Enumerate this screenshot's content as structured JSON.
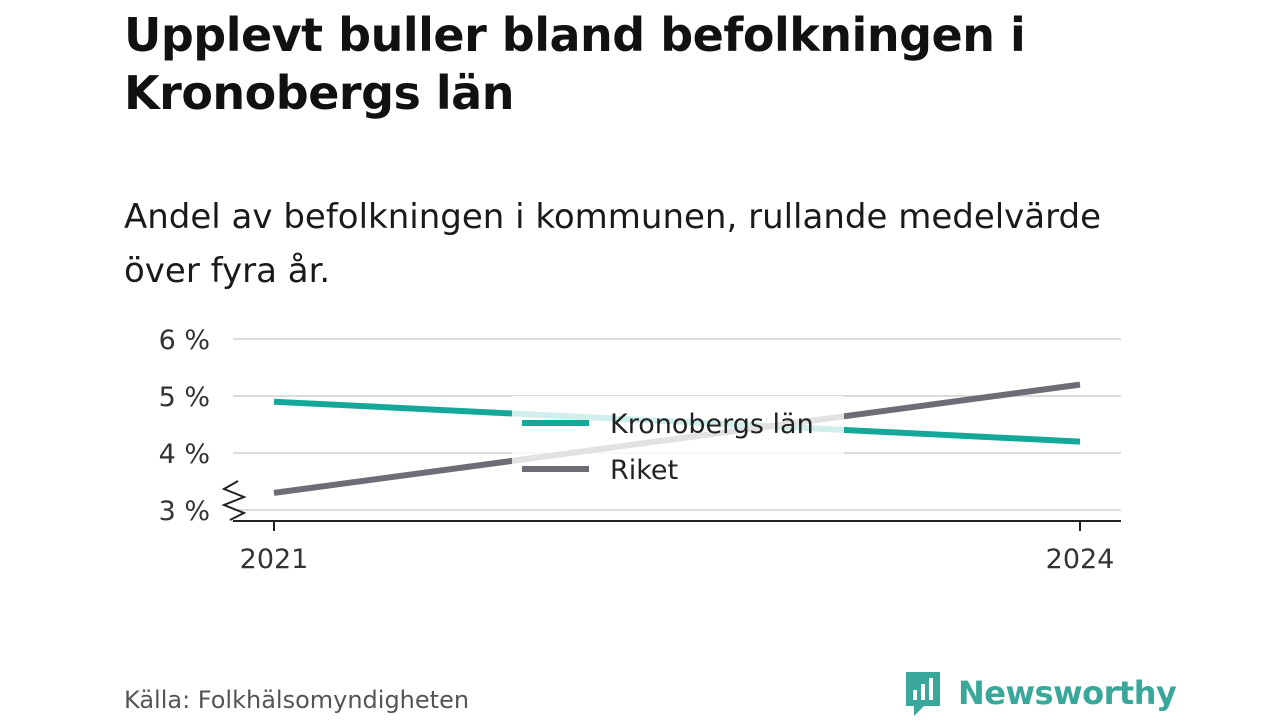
{
  "title": "Upplevt buller bland befolkningen i Kronobergs län",
  "subtitle": "Andel av befolkningen i kommunen, rullande medelvärde över fyra år.",
  "source": "Källa: Folkhälsomyndigheten",
  "brand": {
    "name": "Newsworthy",
    "icon": "bar-chart-speech-icon",
    "color": "#39a79a"
  },
  "chart_data": {
    "type": "line",
    "x": [
      2021,
      2024
    ],
    "x_tick_labels": [
      "2021",
      "2024"
    ],
    "y_ticks": [
      3,
      4,
      5,
      6
    ],
    "y_tick_labels": [
      "3 %",
      "4 %",
      "5 %",
      "6 %"
    ],
    "ylim": [
      3,
      6
    ],
    "y_axis_break": true,
    "grid": true,
    "legend_position": "center",
    "series": [
      {
        "name": "Kronobergs län",
        "color": "#14a89a",
        "values": [
          4.9,
          4.2
        ]
      },
      {
        "name": "Riket",
        "color": "#6e6d75",
        "values": [
          3.3,
          5.2
        ]
      }
    ]
  }
}
